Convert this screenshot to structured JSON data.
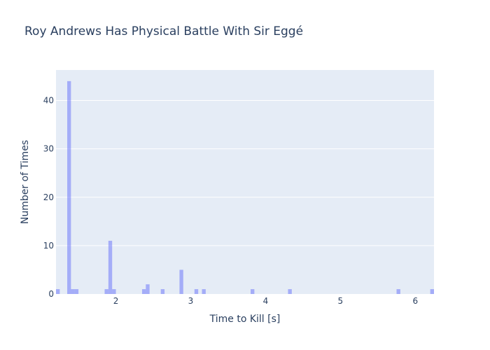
{
  "chart_data": {
    "type": "bar",
    "title": "Roy Andrews Has Physical Battle With Sir Eggé",
    "xlabel": "Time to Kill [s]",
    "ylabel": "Number of Times",
    "xlim": [
      1.2,
      6.25
    ],
    "ylim": [
      0,
      46.3
    ],
    "x_ticks": [
      "2",
      "3",
      "4",
      "5",
      "6"
    ],
    "y_ticks": [
      "0",
      "10",
      "20",
      "30",
      "40"
    ],
    "bin_width": 0.05,
    "bars": [
      {
        "x": 1.2,
        "count": 1
      },
      {
        "x": 1.35,
        "count": 44
      },
      {
        "x": 1.4,
        "count": 1
      },
      {
        "x": 1.45,
        "count": 1
      },
      {
        "x": 1.85,
        "count": 1
      },
      {
        "x": 1.9,
        "count": 11
      },
      {
        "x": 1.95,
        "count": 1
      },
      {
        "x": 2.35,
        "count": 1
      },
      {
        "x": 2.4,
        "count": 2
      },
      {
        "x": 2.6,
        "count": 1
      },
      {
        "x": 2.85,
        "count": 5
      },
      {
        "x": 3.05,
        "count": 1
      },
      {
        "x": 3.15,
        "count": 1
      },
      {
        "x": 3.8,
        "count": 1
      },
      {
        "x": 4.3,
        "count": 1
      },
      {
        "x": 5.75,
        "count": 1
      },
      {
        "x": 6.2,
        "count": 1
      }
    ],
    "grid": true,
    "colors": {
      "bar": "#636efa",
      "plot_bg": "#e5ecf6",
      "grid": "#ffffff",
      "text": "#2a3f5f"
    }
  }
}
